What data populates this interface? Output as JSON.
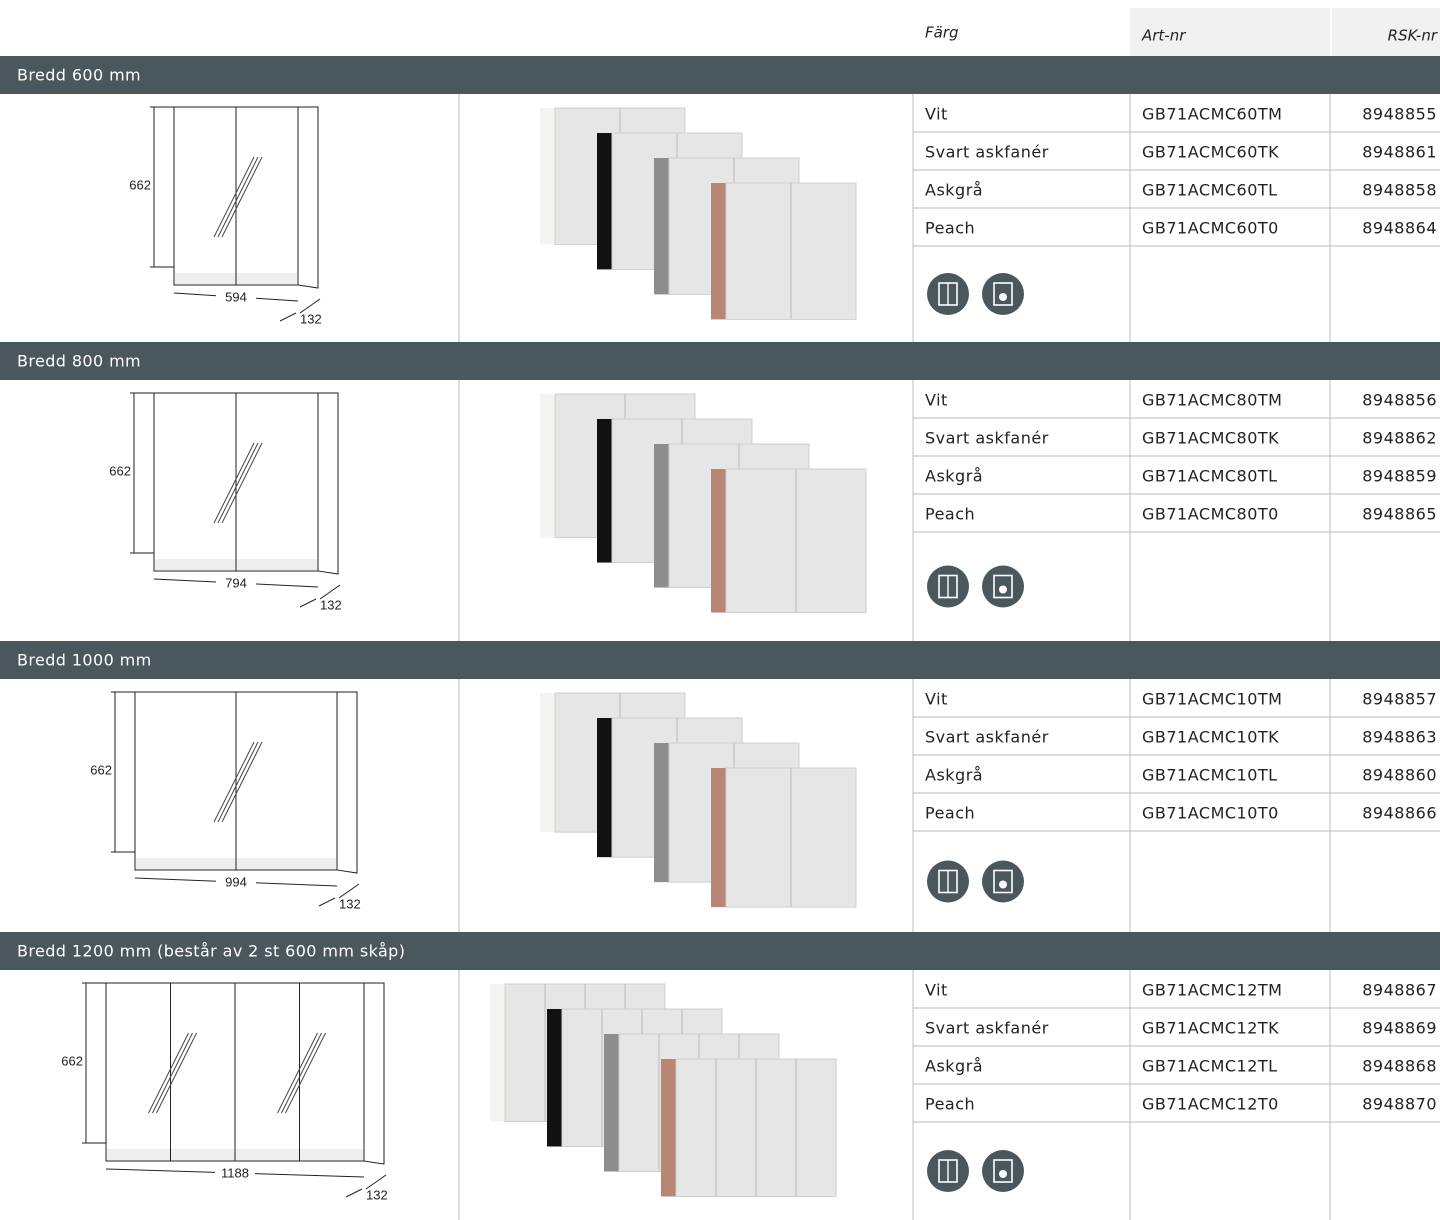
{
  "header": {
    "color": "Färg",
    "art": "Art-nr",
    "rsk": "RSK-nr"
  },
  "sections": [
    {
      "title": "Bredd 600 mm",
      "drawing": {
        "height": "662",
        "width": "594",
        "depth": "132"
      },
      "rows": [
        [
          "Vit",
          "GB71ACMC60TM",
          "8948855"
        ],
        [
          "Svart askfanér",
          "GB71ACMC60TK",
          "8948861"
        ],
        [
          "Askgrå",
          "GB71ACMC60TL",
          "8948858"
        ],
        [
          "Peach",
          "GB71ACMC60T0",
          "8948864"
        ]
      ]
    },
    {
      "title": "Bredd 800 mm",
      "drawing": {
        "height": "662",
        "width": "794",
        "depth": "132"
      },
      "rows": [
        [
          "Vit",
          "GB71ACMC80TM",
          "8948856"
        ],
        [
          "Svart askfanér",
          "GB71ACMC80TK",
          "8948862"
        ],
        [
          "Askgrå",
          "GB71ACMC80TL",
          "8948859"
        ],
        [
          "Peach",
          "GB71ACMC80T0",
          "8948865"
        ]
      ]
    },
    {
      "title": "Bredd 1000 mm",
      "drawing": {
        "height": "662",
        "width": "994",
        "depth": "132"
      },
      "rows": [
        [
          "Vit",
          "GB71ACMC10TM",
          "8948857"
        ],
        [
          "Svart askfanér",
          "GB71ACMC10TK",
          "8948863"
        ],
        [
          "Askgrå",
          "GB71ACMC10TL",
          "8948860"
        ],
        [
          "Peach",
          "GB71ACMC10T0",
          "8948866"
        ]
      ]
    },
    {
      "title": "Bredd 1200 mm (består av 2 st 600 mm skåp)",
      "drawing": {
        "height": "662",
        "width": "1188",
        "depth": "132"
      },
      "rows": [
        [
          "Vit",
          "GB71ACMC12TM",
          "8948867"
        ],
        [
          "Svart askfanér",
          "GB71ACMC12TK",
          "8948869"
        ],
        [
          "Askgrå",
          "GB71ACMC12TL",
          "8948868"
        ],
        [
          "Peach",
          "GB71ACMC12T0",
          "8948870"
        ]
      ]
    }
  ]
}
